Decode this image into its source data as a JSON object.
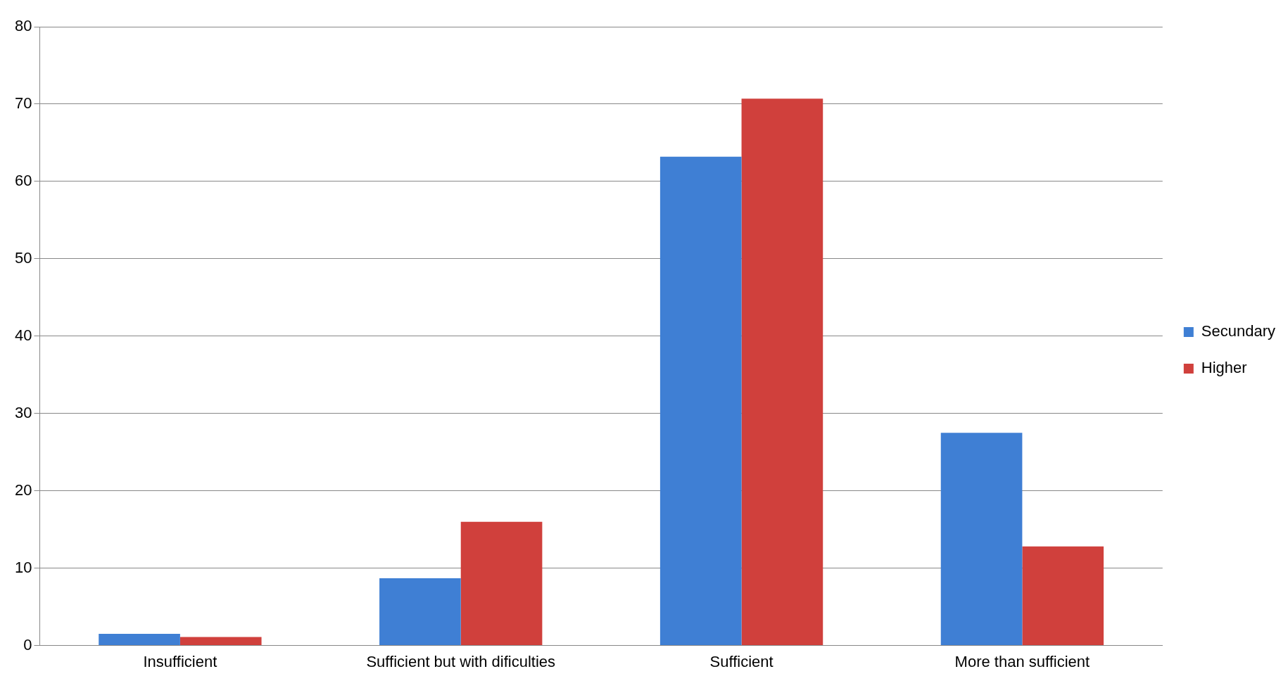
{
  "chart_data": {
    "type": "bar",
    "categories": [
      "Insufficient",
      "Sufficient but with dificulties",
      "Sufficient",
      "More than sufficient"
    ],
    "series": [
      {
        "name": "Secundary",
        "color": "#3f7fd4",
        "values": [
          1.5,
          8.7,
          63.2,
          27.5
        ]
      },
      {
        "name": "Higher",
        "color": "#d0403c",
        "values": [
          1.1,
          16,
          70.7,
          12.8
        ]
      }
    ],
    "ylim": [
      0,
      80
    ],
    "yticks": [
      0,
      10,
      20,
      30,
      40,
      50,
      60,
      70,
      80
    ],
    "grid": "y",
    "legend": "right"
  }
}
